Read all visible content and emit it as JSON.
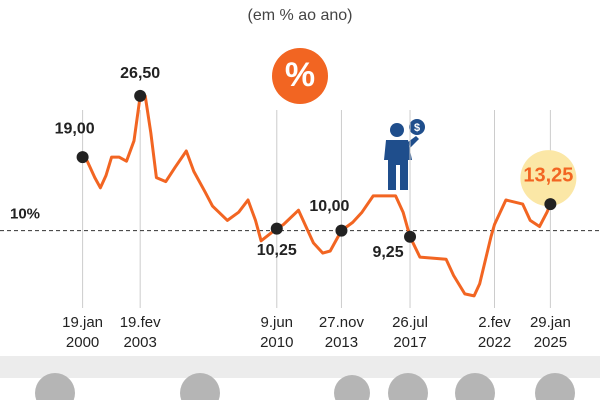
{
  "chart_data": {
    "type": "line",
    "subtitle": "(em % ao ano)",
    "icon_text": "%",
    "coin_symbol": "$",
    "color": "#f26522",
    "highlight_color": "#f26522",
    "x": [
      2000.05,
      2000.3,
      2000.7,
      2001.0,
      2001.3,
      2001.6,
      2002.0,
      2002.4,
      2002.8,
      2003.13,
      2003.4,
      2003.7,
      2004.0,
      2004.5,
      2005.0,
      2005.6,
      2006.0,
      2006.6,
      2007.0,
      2007.8,
      2008.4,
      2008.9,
      2009.3,
      2009.6,
      2010.44,
      2010.8,
      2011.6,
      2012.4,
      2012.9,
      2013.3,
      2013.9,
      2014.5,
      2015.0,
      2015.6,
      2016.8,
      2017.2,
      2017.57,
      2018.1,
      2019.5,
      2019.9,
      2020.5,
      2021.0,
      2021.3,
      2021.9,
      2022.09,
      2022.7,
      2023.6,
      2024.0,
      2024.5,
      2024.9,
      2025.08
    ],
    "values": [
      19,
      18.5,
      16.5,
      15.25,
      16.75,
      19,
      19,
      18.5,
      21,
      26.5,
      26.5,
      22,
      16.5,
      16,
      17.75,
      19.75,
      17.25,
      14.75,
      13,
      11.25,
      12.25,
      13.75,
      11.25,
      8.75,
      10.25,
      10.75,
      12.5,
      8.5,
      7.25,
      7.5,
      10,
      11,
      12.25,
      14.25,
      14.25,
      12.25,
      9.25,
      6.75,
      6.5,
      4.5,
      2.25,
      2,
      3.5,
      9.25,
      10.75,
      13.75,
      13.25,
      11.25,
      10.5,
      12.25,
      13.25
    ],
    "xlim": [
      1996.7,
      2027.2
    ],
    "ylim": [
      1.5,
      35.8
    ],
    "xticks": [
      {
        "value": 2000.05,
        "label": "19.jan 2000"
      },
      {
        "value": 2003.13,
        "label": "19.fev 2003"
      },
      {
        "value": 2010.44,
        "label": "9.jun 2010"
      },
      {
        "value": 2013.9,
        "label": "27.nov 2013"
      },
      {
        "value": 2017.57,
        "label": "26.jul 2017"
      },
      {
        "value": 2022.09,
        "label": "2.fev 2022"
      },
      {
        "value": 2025.08,
        "label": "29.jan 2025"
      }
    ],
    "reference_line": {
      "value": 10,
      "label": "10%"
    },
    "annotations": [
      {
        "x": 2000.05,
        "value": 19,
        "label": "19,00"
      },
      {
        "x": 2003.13,
        "value": 26.5,
        "label": "26,50"
      },
      {
        "x": 2010.44,
        "value": 10.25,
        "label": "10,25"
      },
      {
        "x": 2013.9,
        "value": 10,
        "label": "10,00"
      },
      {
        "x": 2017.57,
        "value": 9.25,
        "label": "9,25"
      },
      {
        "x": 2025.08,
        "value": 13.25,
        "label": "13,25"
      }
    ]
  }
}
